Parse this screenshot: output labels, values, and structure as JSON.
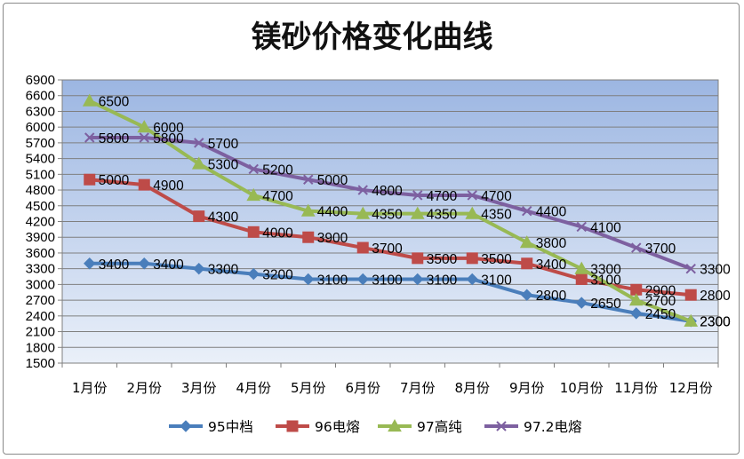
{
  "chart_data": {
    "type": "line",
    "title": "镁砂价格变化曲线",
    "xlabel": "",
    "ylabel": "",
    "categories": [
      "1月份",
      "2月份",
      "3月份",
      "4月份",
      "5月份",
      "6月份",
      "7月份",
      "8月份",
      "9月份",
      "10月份",
      "11月份",
      "12月份"
    ],
    "yticks": [
      "1500",
      "1800",
      "2100",
      "2400",
      "2700",
      "3000",
      "3300",
      "3600",
      "3900",
      "4200",
      "4500",
      "4800",
      "5100",
      "5400",
      "5700",
      "6000",
      "6300",
      "6600",
      "6900"
    ],
    "ylim": [
      1500,
      6900
    ],
    "grid": true,
    "legend_position": "bottom",
    "series": [
      {
        "name": "95中档",
        "color": "#4a7ebb",
        "marker": "diamond",
        "values": [
          3400,
          3400,
          3300,
          3200,
          3100,
          3100,
          3100,
          3100,
          2800,
          2650,
          2450,
          2300
        ],
        "labels": [
          "3400",
          "3400",
          "3300",
          "3200",
          "3100",
          "3100",
          "3100",
          "3100",
          "2800",
          "2650",
          "2450",
          "2300"
        ]
      },
      {
        "name": "96电熔",
        "color": "#be4b48",
        "marker": "square",
        "values": [
          5000,
          4900,
          4300,
          4000,
          3900,
          3700,
          3500,
          3500,
          3400,
          3100,
          2900,
          2800
        ],
        "labels": [
          "5000",
          "4900",
          "4300",
          "4000",
          "3900",
          "3700",
          "3500",
          "3500",
          "3400",
          "3100",
          "2900",
          "2800"
        ]
      },
      {
        "name": "97高纯",
        "color": "#98b954",
        "marker": "triangle",
        "values": [
          6500,
          6000,
          5300,
          4700,
          4400,
          4350,
          4350,
          4350,
          3800,
          3300,
          2700,
          2300
        ],
        "labels": [
          "6500",
          "6000",
          "5300",
          "4700",
          "4400",
          "4350",
          "4350",
          "4350",
          "3800",
          "3300",
          "2700",
          "2300"
        ]
      },
      {
        "name": "97.2电熔",
        "color": "#7d60a0",
        "marker": "x",
        "values": [
          5800,
          5800,
          5700,
          5200,
          5000,
          4800,
          4700,
          4700,
          4400,
          4100,
          3700,
          3300
        ],
        "labels": [
          "5800",
          "5800",
          "5700",
          "5200",
          "5000",
          "4800",
          "4700",
          "4700",
          "4400",
          "4100",
          "3700",
          "3300"
        ]
      }
    ]
  }
}
